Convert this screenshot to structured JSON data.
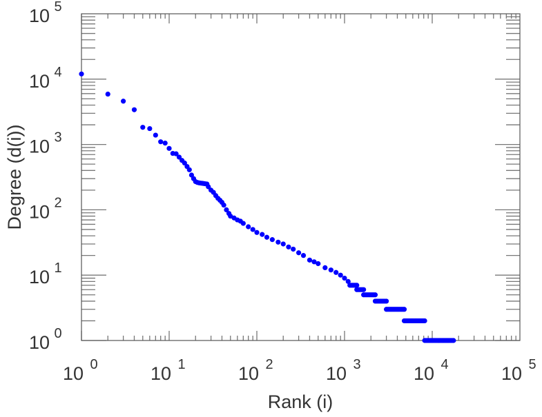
{
  "chart_data": {
    "type": "scatter",
    "title": "",
    "xlabel": "Rank (i)",
    "ylabel": "Degree (d(i))",
    "xscale": "log",
    "yscale": "log",
    "xlim": [
      1,
      100000
    ],
    "ylim": [
      1,
      100000
    ],
    "x_ticks": [
      {
        "base": "10",
        "exp": "0"
      },
      {
        "base": "10",
        "exp": "1"
      },
      {
        "base": "10",
        "exp": "2"
      },
      {
        "base": "10",
        "exp": "3"
      },
      {
        "base": "10",
        "exp": "4"
      },
      {
        "base": "10",
        "exp": "5"
      }
    ],
    "y_ticks": [
      {
        "base": "10",
        "exp": "0"
      },
      {
        "base": "10",
        "exp": "1"
      },
      {
        "base": "10",
        "exp": "2"
      },
      {
        "base": "10",
        "exp": "3"
      },
      {
        "base": "10",
        "exp": "4"
      },
      {
        "base": "10",
        "exp": "5"
      }
    ],
    "marker_color": "#0000ff",
    "points": [
      [
        1,
        12000
      ],
      [
        2,
        5900
      ],
      [
        3,
        4600
      ],
      [
        4,
        3400
      ],
      [
        5,
        1830
      ],
      [
        6,
        1750
      ],
      [
        7,
        1390
      ],
      [
        8,
        1100
      ],
      [
        9,
        1050
      ],
      [
        10,
        870
      ],
      [
        11,
        730
      ],
      [
        12,
        720
      ],
      [
        13,
        640
      ],
      [
        14,
        570
      ],
      [
        15,
        520
      ],
      [
        16,
        460
      ],
      [
        17,
        410
      ],
      [
        18,
        340
      ],
      [
        19,
        300
      ],
      [
        20,
        270
      ],
      [
        21,
        262
      ],
      [
        22,
        258
      ],
      [
        23,
        256
      ],
      [
        24,
        254
      ],
      [
        25,
        252
      ],
      [
        26,
        250
      ],
      [
        27,
        248
      ],
      [
        28,
        225
      ],
      [
        30,
        200
      ],
      [
        32,
        185
      ],
      [
        34,
        165
      ],
      [
        36,
        150
      ],
      [
        38,
        140
      ],
      [
        40,
        130
      ],
      [
        42,
        118
      ],
      [
        45,
        100
      ],
      [
        48,
        88
      ],
      [
        50,
        80
      ],
      [
        55,
        75
      ],
      [
        60,
        70
      ],
      [
        65,
        67
      ],
      [
        70,
        62
      ],
      [
        80,
        55
      ],
      [
        90,
        50
      ],
      [
        100,
        45
      ],
      [
        115,
        42
      ],
      [
        130,
        38
      ],
      [
        150,
        35
      ],
      [
        175,
        32
      ],
      [
        200,
        30
      ],
      [
        230,
        27
      ],
      [
        260,
        25
      ],
      [
        300,
        22
      ],
      [
        340,
        20
      ],
      [
        400,
        17
      ],
      [
        450,
        16
      ],
      [
        500,
        15
      ],
      [
        600,
        13
      ],
      [
        700,
        12
      ],
      [
        800,
        11
      ],
      [
        900,
        10
      ],
      [
        1000,
        9
      ],
      [
        1100,
        8
      ]
    ],
    "plateaus": [
      {
        "degree": 7,
        "rank_from": 1150,
        "rank_to": 1380
      },
      {
        "degree": 6,
        "rank_from": 1380,
        "rank_to": 1650
      },
      {
        "degree": 5,
        "rank_from": 1650,
        "rank_to": 2240
      },
      {
        "degree": 4,
        "rank_from": 2240,
        "rank_to": 3000
      },
      {
        "degree": 3,
        "rank_from": 3000,
        "rank_to": 4800
      },
      {
        "degree": 2,
        "rank_from": 4800,
        "rank_to": 8200
      },
      {
        "degree": 1,
        "rank_from": 8200,
        "rank_to": 17500
      }
    ]
  }
}
